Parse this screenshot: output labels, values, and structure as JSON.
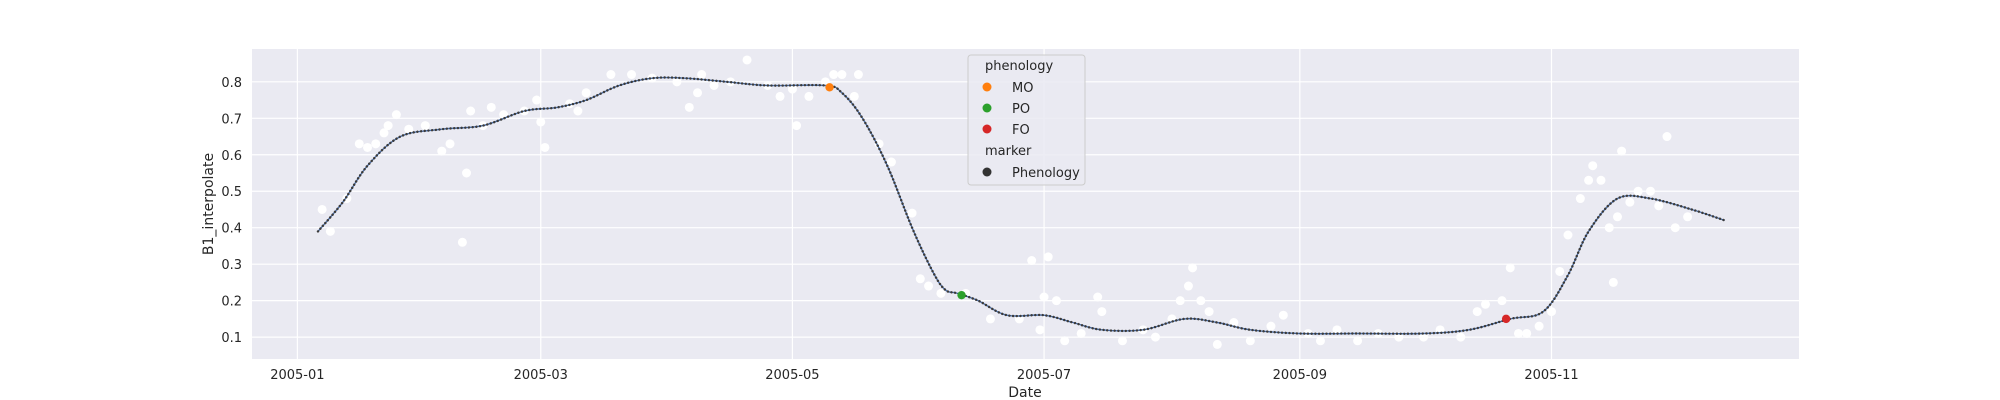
{
  "chart_data": {
    "type": "scatter",
    "xlabel": "Date",
    "ylabel": "B1_interpolate",
    "x_ticks": [
      "2005-01",
      "2005-03",
      "2005-05",
      "2005-07",
      "2005-09",
      "2005-11"
    ],
    "y_ticks": [
      "0.1",
      "0.2",
      "0.3",
      "0.4",
      "0.5",
      "0.6",
      "0.7",
      "0.8"
    ],
    "xlim": [
      "2004-12-21",
      "2005-12-31"
    ],
    "ylim": [
      0.04,
      0.89
    ],
    "grid": true,
    "background": "#eaeaf2",
    "grid_color": "#ffffff",
    "curve_color": "#4c72b0",
    "observation_color": "#ffffff",
    "observations": [
      {
        "x": "2005-01-07",
        "y": 0.45
      },
      {
        "x": "2005-01-09",
        "y": 0.39
      },
      {
        "x": "2005-01-13",
        "y": 0.48
      },
      {
        "x": "2005-01-16",
        "y": 0.63
      },
      {
        "x": "2005-01-18",
        "y": 0.62
      },
      {
        "x": "2005-01-20",
        "y": 0.63
      },
      {
        "x": "2005-01-22",
        "y": 0.66
      },
      {
        "x": "2005-01-23",
        "y": 0.68
      },
      {
        "x": "2005-01-25",
        "y": 0.71
      },
      {
        "x": "2005-01-28",
        "y": 0.67
      },
      {
        "x": "2005-02-01",
        "y": 0.68
      },
      {
        "x": "2005-02-05",
        "y": 0.61
      },
      {
        "x": "2005-02-07",
        "y": 0.63
      },
      {
        "x": "2005-02-10",
        "y": 0.36
      },
      {
        "x": "2005-02-11",
        "y": 0.55
      },
      {
        "x": "2005-02-12",
        "y": 0.72
      },
      {
        "x": "2005-02-15",
        "y": 0.68
      },
      {
        "x": "2005-02-17",
        "y": 0.73
      },
      {
        "x": "2005-02-20",
        "y": 0.71
      },
      {
        "x": "2005-02-25",
        "y": 0.72
      },
      {
        "x": "2005-02-28",
        "y": 0.75
      },
      {
        "x": "2005-03-01",
        "y": 0.69
      },
      {
        "x": "2005-03-02",
        "y": 0.62
      },
      {
        "x": "2005-03-08",
        "y": 0.74
      },
      {
        "x": "2005-03-10",
        "y": 0.72
      },
      {
        "x": "2005-03-12",
        "y": 0.77
      },
      {
        "x": "2005-03-18",
        "y": 0.82
      },
      {
        "x": "2005-03-23",
        "y": 0.82
      },
      {
        "x": "2005-03-28",
        "y": 0.81
      },
      {
        "x": "2005-04-03",
        "y": 0.8
      },
      {
        "x": "2005-04-06",
        "y": 0.73
      },
      {
        "x": "2005-04-08",
        "y": 0.77
      },
      {
        "x": "2005-04-09",
        "y": 0.82
      },
      {
        "x": "2005-04-12",
        "y": 0.79
      },
      {
        "x": "2005-04-16",
        "y": 0.8
      },
      {
        "x": "2005-04-20",
        "y": 0.86
      },
      {
        "x": "2005-04-25",
        "y": 0.79
      },
      {
        "x": "2005-04-28",
        "y": 0.76
      },
      {
        "x": "2005-05-01",
        "y": 0.78
      },
      {
        "x": "2005-05-02",
        "y": 0.68
      },
      {
        "x": "2005-05-05",
        "y": 0.76
      },
      {
        "x": "2005-05-09",
        "y": 0.8
      },
      {
        "x": "2005-05-11",
        "y": 0.82
      },
      {
        "x": "2005-05-13",
        "y": 0.82
      },
      {
        "x": "2005-05-16",
        "y": 0.76
      },
      {
        "x": "2005-05-17",
        "y": 0.82
      },
      {
        "x": "2005-05-22",
        "y": 0.63
      },
      {
        "x": "2005-05-25",
        "y": 0.58
      },
      {
        "x": "2005-05-30",
        "y": 0.44
      },
      {
        "x": "2005-06-01",
        "y": 0.26
      },
      {
        "x": "2005-06-03",
        "y": 0.24
      },
      {
        "x": "2005-06-06",
        "y": 0.22
      },
      {
        "x": "2005-06-12",
        "y": 0.22
      },
      {
        "x": "2005-06-18",
        "y": 0.15
      },
      {
        "x": "2005-06-25",
        "y": 0.15
      },
      {
        "x": "2005-06-28",
        "y": 0.31
      },
      {
        "x": "2005-06-30",
        "y": 0.12
      },
      {
        "x": "2005-07-01",
        "y": 0.21
      },
      {
        "x": "2005-07-02",
        "y": 0.32
      },
      {
        "x": "2005-07-04",
        "y": 0.2
      },
      {
        "x": "2005-07-06",
        "y": 0.09
      },
      {
        "x": "2005-07-10",
        "y": 0.11
      },
      {
        "x": "2005-07-14",
        "y": 0.21
      },
      {
        "x": "2005-07-15",
        "y": 0.17
      },
      {
        "x": "2005-07-20",
        "y": 0.09
      },
      {
        "x": "2005-07-25",
        "y": 0.12
      },
      {
        "x": "2005-07-28",
        "y": 0.1
      },
      {
        "x": "2005-08-01",
        "y": 0.15
      },
      {
        "x": "2005-08-03",
        "y": 0.2
      },
      {
        "x": "2005-08-05",
        "y": 0.24
      },
      {
        "x": "2005-08-06",
        "y": 0.29
      },
      {
        "x": "2005-08-08",
        "y": 0.2
      },
      {
        "x": "2005-08-10",
        "y": 0.17
      },
      {
        "x": "2005-08-12",
        "y": 0.08
      },
      {
        "x": "2005-08-16",
        "y": 0.14
      },
      {
        "x": "2005-08-20",
        "y": 0.09
      },
      {
        "x": "2005-08-25",
        "y": 0.13
      },
      {
        "x": "2005-08-28",
        "y": 0.16
      },
      {
        "x": "2005-09-03",
        "y": 0.11
      },
      {
        "x": "2005-09-06",
        "y": 0.09
      },
      {
        "x": "2005-09-10",
        "y": 0.12
      },
      {
        "x": "2005-09-15",
        "y": 0.09
      },
      {
        "x": "2005-09-20",
        "y": 0.11
      },
      {
        "x": "2005-09-25",
        "y": 0.1
      },
      {
        "x": "2005-10-01",
        "y": 0.1
      },
      {
        "x": "2005-10-05",
        "y": 0.12
      },
      {
        "x": "2005-10-10",
        "y": 0.1
      },
      {
        "x": "2005-10-14",
        "y": 0.17
      },
      {
        "x": "2005-10-16",
        "y": 0.19
      },
      {
        "x": "2005-10-20",
        "y": 0.2
      },
      {
        "x": "2005-10-22",
        "y": 0.29
      },
      {
        "x": "2005-10-24",
        "y": 0.11
      },
      {
        "x": "2005-10-26",
        "y": 0.11
      },
      {
        "x": "2005-10-29",
        "y": 0.13
      },
      {
        "x": "2005-11-01",
        "y": 0.17
      },
      {
        "x": "2005-11-03",
        "y": 0.28
      },
      {
        "x": "2005-11-05",
        "y": 0.38
      },
      {
        "x": "2005-11-08",
        "y": 0.48
      },
      {
        "x": "2005-11-10",
        "y": 0.53
      },
      {
        "x": "2005-11-11",
        "y": 0.57
      },
      {
        "x": "2005-11-13",
        "y": 0.53
      },
      {
        "x": "2005-11-15",
        "y": 0.4
      },
      {
        "x": "2005-11-16",
        "y": 0.25
      },
      {
        "x": "2005-11-17",
        "y": 0.43
      },
      {
        "x": "2005-11-18",
        "y": 0.61
      },
      {
        "x": "2005-11-20",
        "y": 0.47
      },
      {
        "x": "2005-11-22",
        "y": 0.5
      },
      {
        "x": "2005-11-25",
        "y": 0.5
      },
      {
        "x": "2005-11-27",
        "y": 0.46
      },
      {
        "x": "2005-11-29",
        "y": 0.65
      },
      {
        "x": "2005-12-01",
        "y": 0.4
      },
      {
        "x": "2005-12-04",
        "y": 0.43
      }
    ],
    "interpolated_curve": [
      {
        "x": "2005-01-06",
        "y": 0.39
      },
      {
        "x": "2005-01-12",
        "y": 0.47
      },
      {
        "x": "2005-01-18",
        "y": 0.57
      },
      {
        "x": "2005-01-26",
        "y": 0.65
      },
      {
        "x": "2005-02-05",
        "y": 0.67
      },
      {
        "x": "2005-02-15",
        "y": 0.68
      },
      {
        "x": "2005-02-25",
        "y": 0.72
      },
      {
        "x": "2005-03-05",
        "y": 0.73
      },
      {
        "x": "2005-03-12",
        "y": 0.75
      },
      {
        "x": "2005-03-20",
        "y": 0.79
      },
      {
        "x": "2005-03-28",
        "y": 0.81
      },
      {
        "x": "2005-04-05",
        "y": 0.81
      },
      {
        "x": "2005-04-15",
        "y": 0.8
      },
      {
        "x": "2005-04-25",
        "y": 0.79
      },
      {
        "x": "2005-05-09",
        "y": 0.79
      },
      {
        "x": "2005-05-13",
        "y": 0.77
      },
      {
        "x": "2005-05-18",
        "y": 0.7
      },
      {
        "x": "2005-05-24",
        "y": 0.57
      },
      {
        "x": "2005-05-30",
        "y": 0.4
      },
      {
        "x": "2005-06-04",
        "y": 0.28
      },
      {
        "x": "2005-06-07",
        "y": 0.23
      },
      {
        "x": "2005-06-10",
        "y": 0.22
      },
      {
        "x": "2005-06-15",
        "y": 0.2
      },
      {
        "x": "2005-06-22",
        "y": 0.16
      },
      {
        "x": "2005-07-01",
        "y": 0.16
      },
      {
        "x": "2005-07-08",
        "y": 0.14
      },
      {
        "x": "2005-07-15",
        "y": 0.12
      },
      {
        "x": "2005-07-25",
        "y": 0.12
      },
      {
        "x": "2005-08-04",
        "y": 0.15
      },
      {
        "x": "2005-08-12",
        "y": 0.14
      },
      {
        "x": "2005-08-20",
        "y": 0.12
      },
      {
        "x": "2005-09-01",
        "y": 0.11
      },
      {
        "x": "2005-09-15",
        "y": 0.11
      },
      {
        "x": "2005-10-01",
        "y": 0.11
      },
      {
        "x": "2005-10-12",
        "y": 0.12
      },
      {
        "x": "2005-10-22",
        "y": 0.15
      },
      {
        "x": "2005-10-30",
        "y": 0.17
      },
      {
        "x": "2005-11-05",
        "y": 0.27
      },
      {
        "x": "2005-11-10",
        "y": 0.39
      },
      {
        "x": "2005-11-17",
        "y": 0.48
      },
      {
        "x": "2005-11-25",
        "y": 0.48
      },
      {
        "x": "2005-12-05",
        "y": 0.45
      },
      {
        "x": "2005-12-13",
        "y": 0.42
      }
    ],
    "phenology_points": [
      {
        "label": "MO",
        "x": "2005-05-10",
        "y": 0.785,
        "color": "#ff7f0e"
      },
      {
        "label": "PO",
        "x": "2005-06-11",
        "y": 0.215,
        "color": "#2ca02c"
      },
      {
        "label": "FO",
        "x": "2005-10-21",
        "y": 0.15,
        "color": "#d62728"
      }
    ],
    "legend": {
      "placement": "top-center",
      "hue_title": "phenology",
      "hue_entries": [
        {
          "label": "MO",
          "color": "#ff7f0e"
        },
        {
          "label": "PO",
          "color": "#2ca02c"
        },
        {
          "label": "FO",
          "color": "#d62728"
        }
      ],
      "style_title": "marker",
      "style_entries": [
        {
          "label": "Phenology",
          "color": "#333333"
        }
      ]
    }
  }
}
